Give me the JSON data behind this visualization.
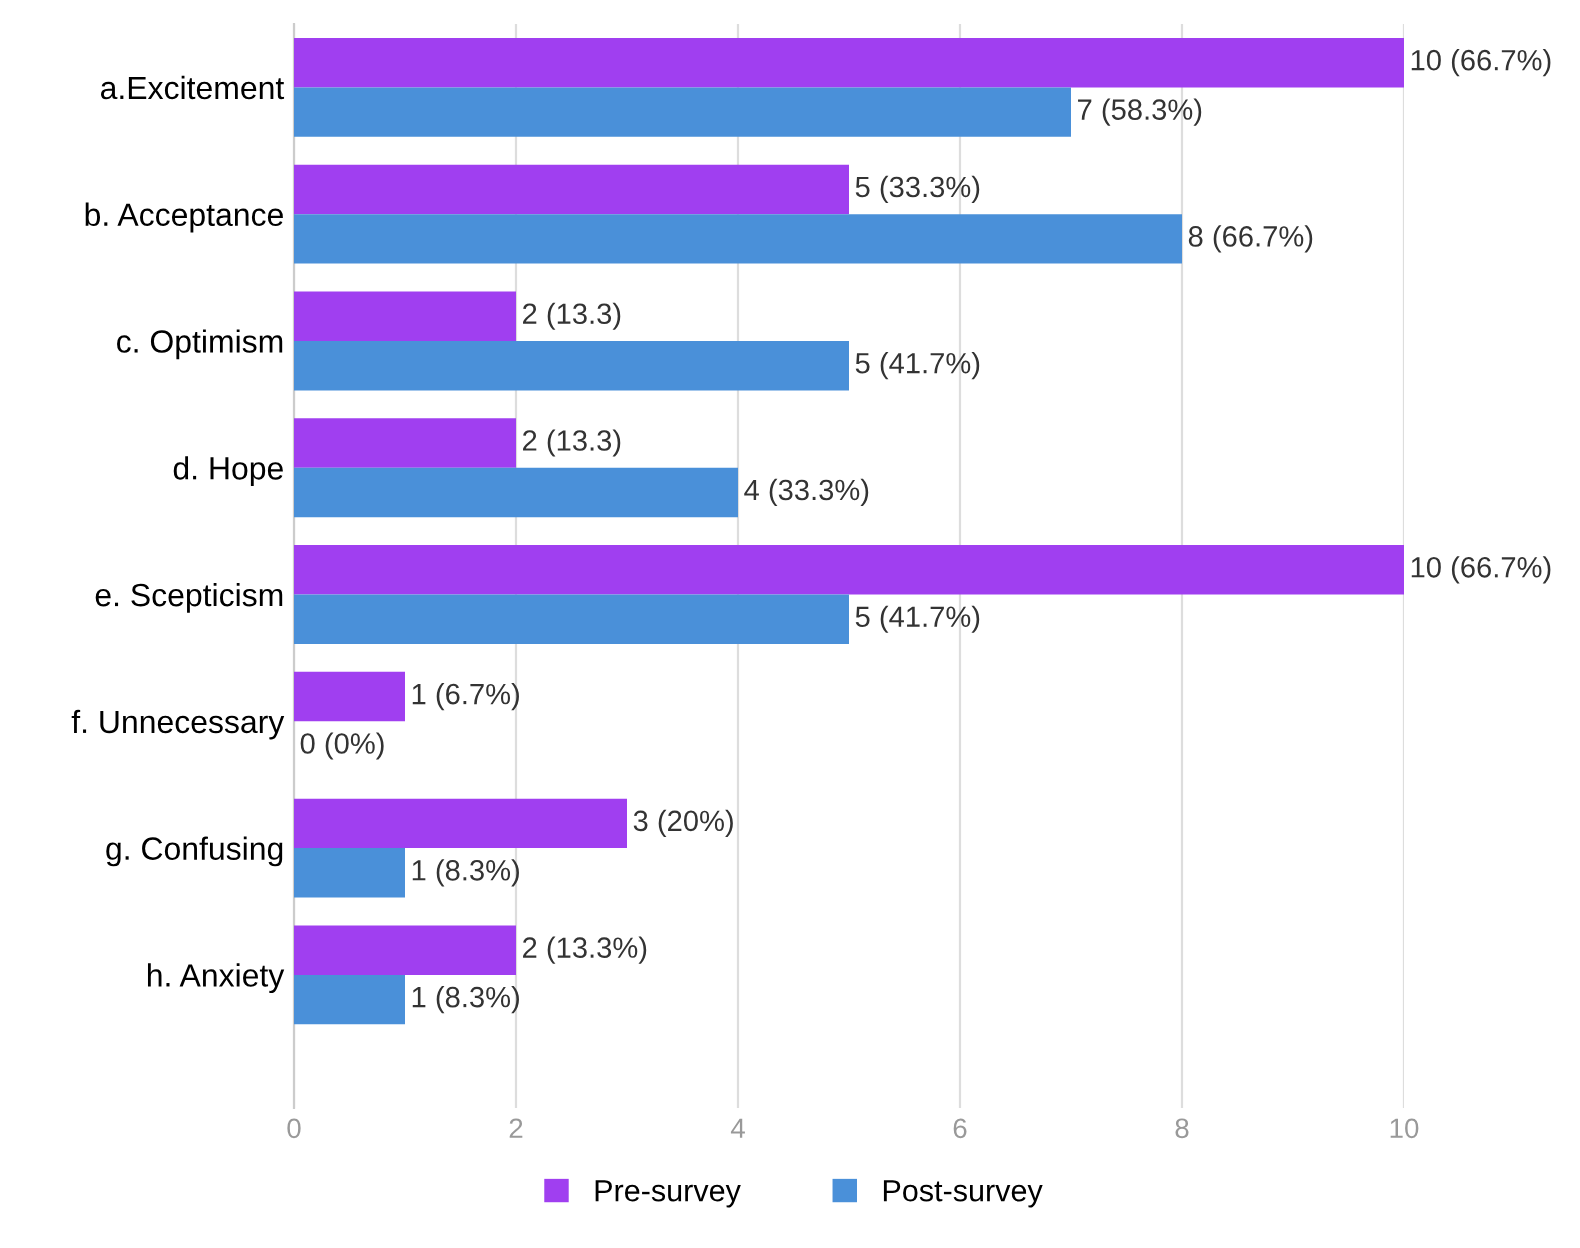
{
  "chart_data": {
    "type": "bar",
    "orientation": "horizontal",
    "categories": [
      "a.Excitement",
      "b. Acceptance",
      "c. Optimism",
      "d. Hope",
      "e. Scepticism",
      "f. Unnecessary",
      "g. Confusing",
      "h. Anxiety"
    ],
    "series": [
      {
        "name": "Pre-survey",
        "color": "#a03ff0",
        "values": [
          10,
          5,
          2,
          2,
          10,
          1,
          3,
          2
        ],
        "value_labels": [
          "10 (66.7%)",
          "5 (33.3%)",
          "2 (13.3)",
          "2 (13.3)",
          "10 (66.7%)",
          "1 (6.7%)",
          "3 (20%)",
          "2 (13.3%)"
        ]
      },
      {
        "name": "Post-survey",
        "color": "#4a90d9",
        "values": [
          7,
          8,
          5,
          4,
          5,
          0,
          1,
          1
        ],
        "value_labels": [
          "7 (58.3%)",
          "8 (66.7%)",
          "5 (41.7%)",
          "4 (33.3%)",
          "5 (41.7%)",
          "0 (0%)",
          "1 (8.3%)",
          "1 (8.3%)"
        ]
      }
    ],
    "xlim": [
      0,
      10
    ],
    "xticks": [
      0,
      2,
      4,
      6,
      8,
      10
    ],
    "grid": "x",
    "legend": "bottom"
  }
}
